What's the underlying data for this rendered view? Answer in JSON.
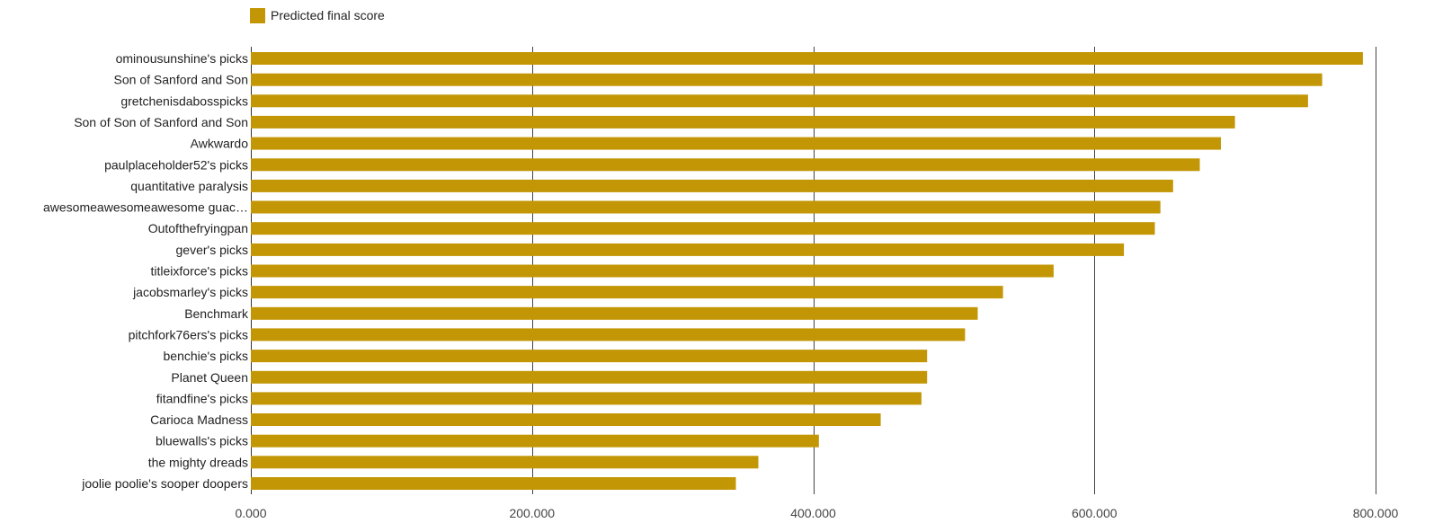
{
  "legend": {
    "label": "Predicted final score",
    "color": "#c29605"
  },
  "chart_data": {
    "type": "bar",
    "orientation": "horizontal",
    "categories": [
      "ominousunshine's picks",
      "Son of Sanford and Son",
      "gretchenisdabosspicks",
      "Son of Son of Sanford and Son",
      "Awkwardo",
      "paulplaceholder52's picks",
      "quantitative paralysis",
      "awesomeawesomeawesome guac…",
      "Outofthefryingpan",
      "gever's picks",
      "titleixforce's picks",
      "jacobsmarley's picks",
      "Benchmark",
      "pitchfork76ers's picks",
      "benchie's picks",
      "Planet Queen",
      "fitandfine's picks",
      "Carioca Madness",
      "bluewalls's picks",
      "the mighty dreads",
      "joolie poolie's sooper doopers"
    ],
    "series": [
      {
        "name": "Predicted final score",
        "color": "#c29605",
        "values": [
          791,
          762,
          752,
          700,
          690,
          675,
          656,
          647,
          643,
          621,
          571,
          535,
          517,
          508,
          481,
          481,
          477,
          448,
          404,
          361,
          345
        ]
      }
    ],
    "xlim": [
      0,
      800
    ],
    "xticks": [
      0,
      200,
      400,
      600,
      800
    ],
    "xtick_labels": [
      "0.000",
      "200.000",
      "400.000",
      "600.000",
      "800.000"
    ],
    "grid": true,
    "legend_position": "top-left"
  }
}
